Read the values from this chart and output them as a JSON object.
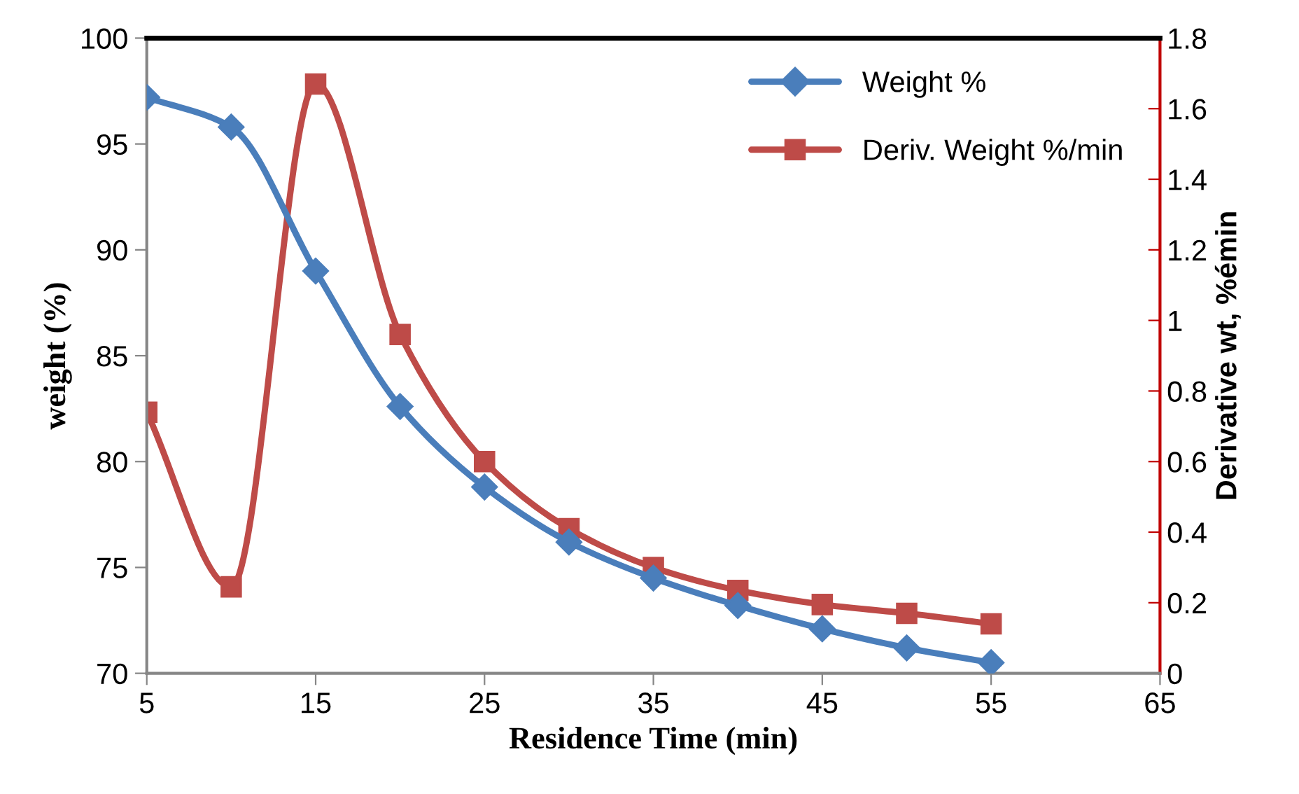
{
  "chart_data": {
    "type": "line",
    "xlabel": "Residence Time (min)",
    "ylabel": "weight (%)",
    "y2label": "Derivative wt, %émin",
    "x": [
      5,
      10,
      15,
      20,
      25,
      30,
      35,
      40,
      45,
      50,
      55
    ],
    "series": [
      {
        "name": "Weight %",
        "color": "#4a7ebb",
        "marker": "diamond",
        "values": [
          97.2,
          95.8,
          89.0,
          82.6,
          78.8,
          76.2,
          74.5,
          73.2,
          72.1,
          71.2,
          70.5
        ]
      },
      {
        "name": "Deriv. Weight %/min",
        "color": "#be4b48",
        "marker": "square",
        "axis": "y2",
        "values": [
          0.74,
          0.245,
          1.67,
          0.96,
          0.6,
          0.41,
          0.3,
          0.235,
          0.195,
          0.17,
          0.14
        ]
      }
    ],
    "xlim": [
      5,
      65
    ],
    "xticks": [
      5,
      15,
      25,
      35,
      45,
      55,
      65
    ],
    "ylim": [
      70,
      100
    ],
    "yticks": [
      70,
      75,
      80,
      85,
      90,
      95,
      100
    ],
    "y2lim": [
      0,
      1.8
    ],
    "y2ticks": [
      0,
      {
        "value": 0.2,
        "label": "0.2"
      },
      {
        "value": 0.4,
        "label": "0.4"
      },
      {
        "value": 0.6,
        "label": "0.6"
      },
      {
        "value": 0.8,
        "label": "0.8"
      },
      1,
      {
        "value": 1.2,
        "label": "1.2"
      },
      {
        "value": 1.4,
        "label": "1.4"
      },
      {
        "value": 1.6,
        "label": "1.6"
      },
      {
        "value": 1.8,
        "label": "1.8"
      }
    ],
    "grid": false,
    "legend": "top right",
    "line_style": "solid"
  }
}
